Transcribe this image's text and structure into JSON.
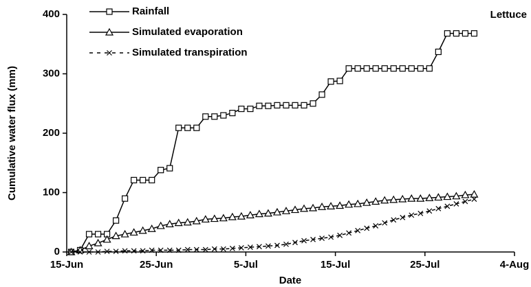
{
  "chart_data": {
    "type": "line",
    "annotation": "Lettuce",
    "xlabel": "Date",
    "ylabel": "Cumulative water flux (mm)",
    "x": [
      0.5,
      1.5,
      2.5,
      3.5,
      4.5,
      5.5,
      6.5,
      7.5,
      8.5,
      9.5,
      10.5,
      11.5,
      12.5,
      13.5,
      14.5,
      15.5,
      16.5,
      17.5,
      18.5,
      19.5,
      20.5,
      21.5,
      22.5,
      23.5,
      24.5,
      25.5,
      26.5,
      27.5,
      28.5,
      29.5,
      30.5,
      31.5,
      32.5,
      33.5,
      34.5,
      35.5,
      36.5,
      37.5,
      38.5,
      39.5,
      40.5,
      41.5,
      42.5,
      43.5,
      44.5,
      45.5
    ],
    "series": [
      {
        "name": "Rainfall",
        "color": "#000000",
        "marker": "square",
        "dash": false,
        "values": [
          0,
          3,
          30,
          30,
          30,
          53,
          90,
          121,
          121,
          121,
          138,
          141,
          209,
          209,
          209,
          228,
          228,
          230,
          234,
          241,
          241,
          246,
          246,
          247,
          247,
          247,
          247,
          250,
          265,
          287,
          288,
          309,
          309,
          309,
          309,
          309,
          309,
          309,
          309,
          309,
          309,
          337,
          368,
          368,
          368,
          368
        ]
      },
      {
        "name": "Simulated evaporation",
        "color": "#000000",
        "marker": "triangle",
        "dash": false,
        "values": [
          0,
          3,
          10,
          15,
          21,
          27,
          30,
          33,
          36,
          39,
          44,
          47,
          49,
          50,
          52,
          55,
          56,
          57,
          59,
          60,
          62,
          64,
          65,
          67,
          69,
          71,
          73,
          74,
          76,
          77,
          78,
          80,
          81,
          83,
          85,
          87,
          88,
          89,
          90,
          90,
          91,
          92,
          93,
          94,
          96,
          97
        ]
      },
      {
        "name": "Simulated transpiration",
        "color": "#000000",
        "marker": "x",
        "dash": true,
        "values": [
          0,
          0,
          0,
          0,
          1,
          1,
          2,
          2,
          2,
          3,
          3,
          3,
          3,
          4,
          4,
          4,
          5,
          5,
          6,
          7,
          8,
          9,
          10,
          11,
          13,
          16,
          19,
          21,
          23,
          25,
          28,
          32,
          36,
          40,
          44,
          49,
          54,
          58,
          62,
          65,
          69,
          73,
          77,
          81,
          85,
          89
        ]
      }
    ],
    "xlim": [
      0,
      50
    ],
    "xticks": [
      {
        "value": 0,
        "label": "15-Jun"
      },
      {
        "value": 10,
        "label": "25-Jun"
      },
      {
        "value": 20,
        "label": "5-Jul"
      },
      {
        "value": 30,
        "label": "15-Jul"
      },
      {
        "value": 40,
        "label": "25-Jul"
      },
      {
        "value": 50,
        "label": "4-Aug"
      }
    ],
    "ylim": [
      0,
      400
    ],
    "yticks": [
      0,
      100,
      200,
      300,
      400
    ],
    "grid": false,
    "legend": "upper left"
  }
}
